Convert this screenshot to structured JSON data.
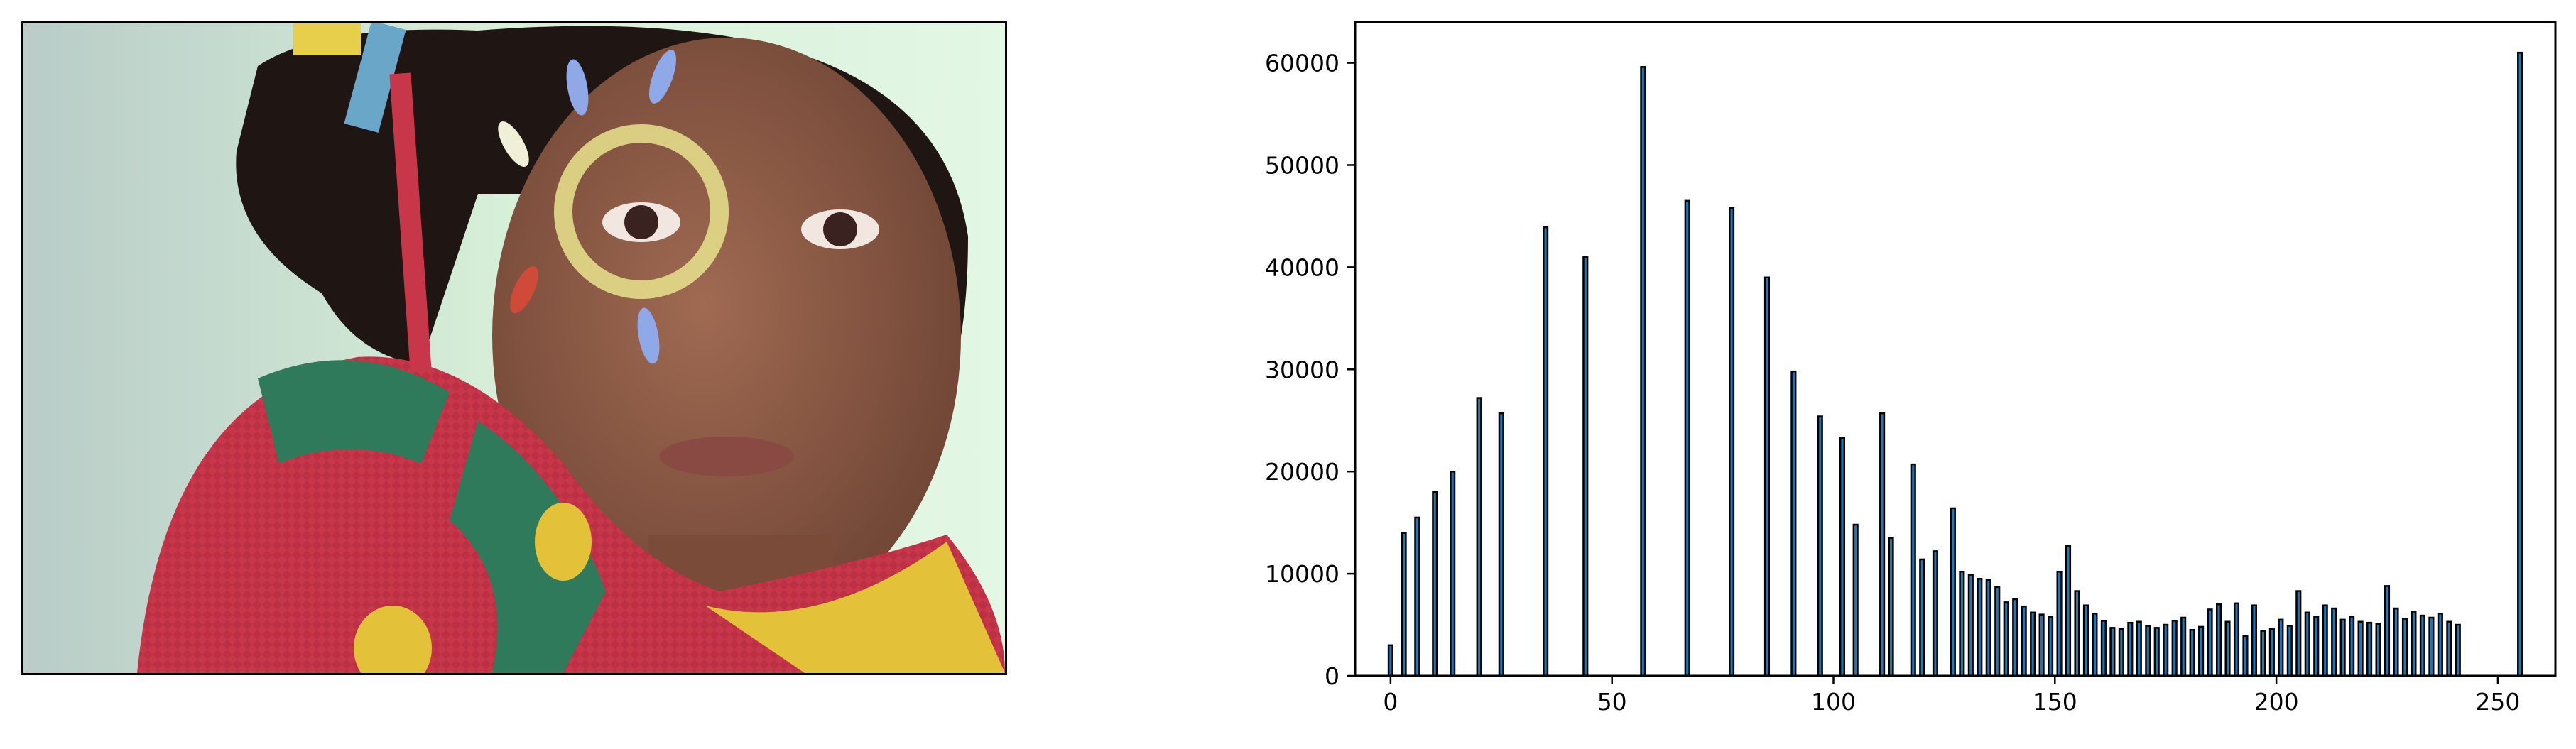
{
  "photo": {
    "subject": "portrait of a child with face paint",
    "colors": {
      "background": "#cfe8cf",
      "skin": "#8a5a44",
      "hair": "#1f1613",
      "sweater_red": "#c8364a",
      "sweater_green": "#2f7a5a",
      "sweater_yellow": "#e3c23a",
      "paint_ring": "#e3dc8a",
      "paint_blue": "#8fa8e8",
      "ribbon_blue": "#6aa6c8",
      "ribbon_yellow": "#e6cf4a"
    }
  },
  "chart_data": {
    "type": "bar",
    "title": "",
    "xlabel": "",
    "ylabel": "",
    "xlim": [
      -8,
      263
    ],
    "ylim": [
      0,
      64000
    ],
    "xticks": [
      0,
      50,
      100,
      150,
      200,
      250
    ],
    "yticks": [
      0,
      10000,
      20000,
      30000,
      40000,
      50000,
      60000
    ],
    "grid": false,
    "legend": "none",
    "bar_color": "#1f77b4",
    "edge_color": "#000000",
    "x": [
      0,
      3,
      6,
      10,
      14,
      20,
      25,
      35,
      44,
      57,
      67,
      77,
      85,
      91,
      97,
      102,
      105,
      111,
      113,
      118,
      120,
      123,
      127,
      129,
      131,
      133,
      135,
      137,
      139,
      141,
      143,
      145,
      147,
      149,
      151,
      153,
      155,
      157,
      159,
      161,
      163,
      165,
      167,
      169,
      171,
      173,
      175,
      177,
      179,
      181,
      183,
      185,
      187,
      189,
      191,
      193,
      195,
      197,
      199,
      201,
      203,
      205,
      207,
      209,
      211,
      213,
      215,
      217,
      219,
      221,
      223,
      225,
      227,
      229,
      231,
      233,
      235,
      237,
      239,
      241,
      255
    ],
    "values": [
      3000,
      14000,
      15500,
      18000,
      20000,
      27200,
      25700,
      43900,
      41000,
      59600,
      46500,
      45800,
      39000,
      29800,
      25400,
      23300,
      14800,
      25700,
      13500,
      20700,
      11400,
      12200,
      16400,
      10200,
      9900,
      9500,
      9400,
      8700,
      7200,
      7500,
      6800,
      6200,
      6000,
      5800,
      10200,
      12700,
      8300,
      6900,
      6100,
      5400,
      4700,
      4600,
      5200,
      5300,
      4900,
      4700,
      5000,
      5400,
      5700,
      4500,
      4800,
      6500,
      7000,
      5300,
      7100,
      3900,
      6900,
      4400,
      4600,
      5500,
      4900,
      8300,
      6200,
      5800,
      6900,
      6600,
      5500,
      5800,
      5300,
      5200,
      5100,
      8800,
      6600,
      5600,
      6300,
      5900,
      5700,
      6100,
      5300,
      5000,
      61000
    ]
  }
}
